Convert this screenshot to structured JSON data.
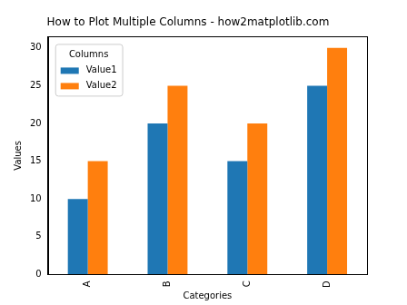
{
  "chart_data": {
    "type": "bar",
    "title": "How to Plot Multiple Columns - how2matplotlib.com",
    "x_label": "Categories",
    "y_label": "Values",
    "categories": [
      "A",
      "B",
      "C",
      "D"
    ],
    "series": [
      {
        "name": "Value1",
        "color": "#1f77b4",
        "values": [
          10,
          20,
          15,
          25
        ]
      },
      {
        "name": "Value2",
        "color": "#ff7f0e",
        "values": [
          15,
          25,
          20,
          30
        ]
      }
    ],
    "ylim": [
      0,
      31.5
    ],
    "yticks": [
      0,
      5,
      10,
      15,
      20,
      25,
      30
    ],
    "grid": false,
    "legend": "upper left",
    "legend_title": "Columns"
  }
}
